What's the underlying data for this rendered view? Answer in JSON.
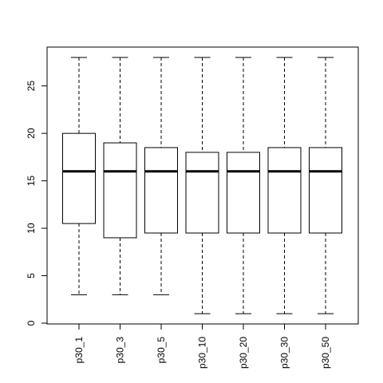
{
  "chart_data": {
    "type": "boxplot",
    "title": "",
    "xlabel": "",
    "ylabel": "",
    "ylim": [
      0,
      28
    ],
    "yticks": [
      0,
      5,
      10,
      15,
      20,
      25
    ],
    "grid": false,
    "legend": "none",
    "categories": [
      "p30_1",
      "p30_3",
      "p30_5",
      "p30_10",
      "p30_20",
      "p30_30",
      "p30_50"
    ],
    "boxes": [
      {
        "name": "p30_1",
        "min": 3,
        "q1": 10.5,
        "median": 16,
        "q3": 20,
        "max": 28
      },
      {
        "name": "p30_3",
        "min": 3,
        "q1": 9,
        "median": 16,
        "q3": 19,
        "max": 28
      },
      {
        "name": "p30_5",
        "min": 3,
        "q1": 9.5,
        "median": 16,
        "q3": 18.5,
        "max": 28
      },
      {
        "name": "p30_10",
        "min": 1,
        "q1": 9.5,
        "median": 16,
        "q3": 18,
        "max": 28
      },
      {
        "name": "p30_20",
        "min": 1,
        "q1": 9.5,
        "median": 16,
        "q3": 18,
        "max": 28
      },
      {
        "name": "p30_30",
        "min": 1,
        "q1": 9.5,
        "median": 16,
        "q3": 18.5,
        "max": 28
      },
      {
        "name": "p30_50",
        "min": 1,
        "q1": 9.5,
        "median": 16,
        "q3": 18.5,
        "max": 28
      }
    ],
    "colors": {
      "box_fill": "#ffffff",
      "line": "#000000"
    }
  }
}
